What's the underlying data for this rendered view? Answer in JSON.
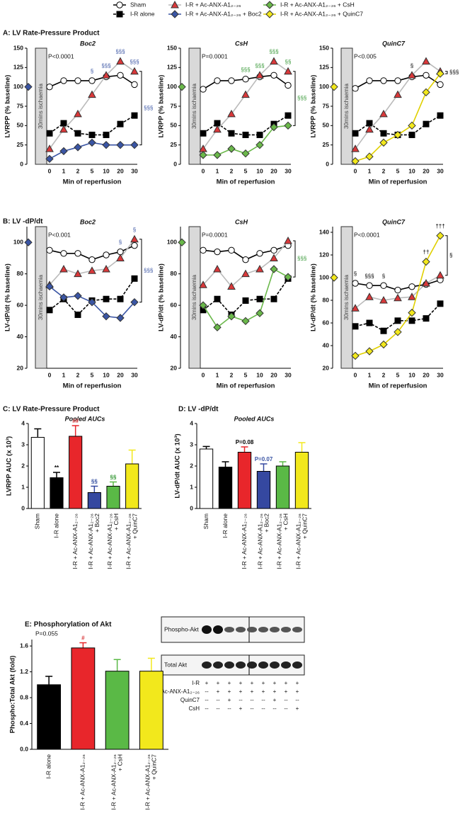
{
  "legend": [
    {
      "name": "Sham",
      "marker": "circle",
      "color": "#ffffff",
      "line": "#000000",
      "dash": false
    },
    {
      "name": "I-R alone",
      "marker": "square",
      "color": "#000000",
      "line": "#000000",
      "dash": true
    },
    {
      "name": "I-R + Ac-ANX-A1₂₋₂₆",
      "marker": "triangle",
      "color": "#d9383a",
      "line": "#bbbbbb",
      "dash": false
    },
    {
      "name": "I-R + Ac-ANX-A1₂₋₂₆ + Boc2",
      "marker": "diamond",
      "color": "#3a55a4",
      "line": "#3a55a4",
      "dash": false
    },
    {
      "name": "I-R + Ac-ANX-A1₂₋₂₆ + CsH",
      "marker": "diamond",
      "color": "#6ab84a",
      "line": "#6ab84a",
      "dash": false
    },
    {
      "name": "I-R + Ac-ANX-A1₂₋₂₆ + QuinC7",
      "marker": "diamond",
      "color": "#f2e81c",
      "line": "#e0d000",
      "dash": false
    }
  ],
  "chart_data": [
    {
      "type": "line",
      "panel_title": "A: LV Rate-Pressure Product",
      "subtitle": "Boc2",
      "y_label": "LVRPP (% baseline)",
      "x_label": "Min of reperfusion",
      "box_label": "30mins ischaemia",
      "stat_label": "P<0.0001",
      "baseline": 100,
      "categories": [
        "0",
        "1",
        "2",
        "5",
        "10",
        "20",
        "30"
      ],
      "ylim": [
        0,
        150
      ],
      "yticks": [
        0,
        25,
        50,
        75,
        100,
        125,
        150
      ],
      "series": [
        {
          "name": "Sham",
          "values": [
            100,
            108,
            108,
            108,
            113,
            115,
            103
          ]
        },
        {
          "name": "I-R alone",
          "values": [
            40,
            53,
            40,
            38,
            38,
            52,
            63
          ]
        },
        {
          "name": "I-R + Ac-ANX-A1₂₋₂₆",
          "values": [
            20,
            45,
            65,
            90,
            115,
            133,
            120
          ]
        },
        {
          "name": "I-R + Ac-ANX-A1₂₋₂₆ + Boc2",
          "values": [
            7,
            17,
            22,
            28,
            25,
            25,
            25
          ]
        }
      ],
      "top_labels": [
        null,
        null,
        null,
        "§",
        "§§§",
        "§§§",
        "§§§"
      ],
      "side_label": "§§§",
      "label_color": "#3a55a4"
    },
    {
      "type": "line",
      "subtitle": "CsH",
      "y_label": "LVRPP (% baseline)",
      "x_label": "Min of reperfusion",
      "box_label": "30mins ischaemia",
      "stat_label": "P=0.0001",
      "baseline": 100,
      "categories": [
        "0",
        "1",
        "2",
        "5",
        "10",
        "20",
        "30"
      ],
      "ylim": [
        0,
        150
      ],
      "yticks": [
        0,
        25,
        50,
        75,
        100,
        125,
        150
      ],
      "series": [
        {
          "name": "Sham",
          "values": [
            97,
            108,
            108,
            110,
            113,
            115,
            102
          ]
        },
        {
          "name": "I-R alone",
          "values": [
            40,
            53,
            40,
            38,
            38,
            52,
            63
          ]
        },
        {
          "name": "I-R + Ac-ANX-A1₂₋₂₆",
          "values": [
            20,
            45,
            65,
            90,
            115,
            133,
            120
          ]
        },
        {
          "name": "I-R + Ac-ANX-A1₂₋₂₆ + CsH",
          "values": [
            12,
            12,
            20,
            14,
            25,
            48,
            50
          ]
        }
      ],
      "top_labels": [
        null,
        null,
        null,
        "§§§",
        "§§§",
        "§§§",
        "§§"
      ],
      "side_label": "§§§",
      "label_color": "#3a9a3a"
    },
    {
      "type": "line",
      "subtitle": "QuinC7",
      "y_label": "LVRPP (% baseline)",
      "x_label": "Min of reperfusion",
      "box_label": "30mins ischaemia",
      "stat_label": "P<0.005",
      "baseline": 100,
      "categories": [
        "0",
        "1",
        "2",
        "5",
        "10",
        "20",
        "30"
      ],
      "ylim": [
        0,
        150
      ],
      "yticks": [
        0,
        25,
        50,
        75,
        100,
        125,
        150
      ],
      "series": [
        {
          "name": "Sham",
          "values": [
            98,
            108,
            108,
            108,
            113,
            115,
            103
          ]
        },
        {
          "name": "I-R alone",
          "values": [
            40,
            53,
            40,
            38,
            38,
            52,
            63
          ]
        },
        {
          "name": "I-R + Ac-ANX-A1₂₋₂₆",
          "values": [
            20,
            45,
            65,
            90,
            115,
            133,
            120
          ]
        },
        {
          "name": "I-R + Ac-ANX-A1₂₋₂₆ + QuinC7",
          "values": [
            4,
            10,
            28,
            38,
            50,
            93,
            117
          ]
        }
      ],
      "top_labels": [
        null,
        null,
        null,
        null,
        "§",
        null,
        null
      ],
      "side_label": "§§§",
      "label_color": "#000000"
    },
    {
      "type": "line",
      "panel_title": "B: LV -dP/dt",
      "subtitle": "Boc2",
      "y_label": "LV-dP/dt (% baseline)",
      "x_label": "Min of reperfusion",
      "box_label": "30mins ischaemia",
      "stat_label": "P<0.001",
      "baseline": 100,
      "categories": [
        "0",
        "1",
        "2",
        "5",
        "10",
        "20",
        "30"
      ],
      "ylim": [
        20,
        110
      ],
      "yticks": [
        20,
        40,
        60,
        80,
        100
      ],
      "series": [
        {
          "name": "Sham",
          "values": [
            95,
            93,
            93,
            89,
            92,
            94,
            98
          ]
        },
        {
          "name": "I-R alone",
          "values": [
            57,
            64,
            54,
            63,
            64,
            64,
            77
          ]
        },
        {
          "name": "I-R + Ac-ANX-A1₂₋₂₆",
          "values": [
            73,
            83,
            80,
            82,
            83,
            90,
            102
          ]
        },
        {
          "name": "I-R + Ac-ANX-A1₂₋₂₆ + Boc2",
          "values": [
            72,
            65,
            66,
            62,
            53,
            52,
            62
          ]
        }
      ],
      "top_labels": [
        null,
        null,
        null,
        null,
        null,
        "§",
        "§"
      ],
      "side_label": "§§§",
      "label_color": "#3a55a4"
    },
    {
      "type": "line",
      "subtitle": "CsH",
      "y_label": "LV-dP/dt (% baseline)",
      "x_label": "Min of reperfusion",
      "box_label": "30mins ischaemia",
      "stat_label": "P=0.0001",
      "baseline": 100,
      "categories": [
        "0",
        "1",
        "2",
        "5",
        "10",
        "20",
        "30"
      ],
      "ylim": [
        20,
        110
      ],
      "yticks": [
        20,
        40,
        60,
        80,
        100
      ],
      "series": [
        {
          "name": "Sham",
          "values": [
            95,
            94,
            95,
            89,
            93,
            95,
            98
          ]
        },
        {
          "name": "I-R alone",
          "values": [
            57,
            64,
            54,
            63,
            64,
            64,
            77
          ]
        },
        {
          "name": "I-R + Ac-ANX-A1₂₋₂₆",
          "values": [
            73,
            83,
            72,
            80,
            83,
            90,
            101
          ]
        },
        {
          "name": "I-R + Ac-ANX-A1₂₋₂₆ + CsH",
          "values": [
            60,
            46,
            53,
            50,
            55,
            83,
            78
          ]
        }
      ],
      "side_label": "§§§",
      "label_color": "#3a9a3a"
    },
    {
      "type": "line",
      "subtitle": "QuinC7",
      "y_label": "LV-dP/dt (% baseline)",
      "x_label": "Min of reperfusion",
      "box_label": "30mins ischaemia",
      "stat_label": "P<0.0001",
      "baseline": 100,
      "categories": [
        "0",
        "1",
        "2",
        "5",
        "10",
        "20",
        "30"
      ],
      "ylim": [
        20,
        145
      ],
      "yticks": [
        20,
        40,
        60,
        80,
        100,
        120,
        140
      ],
      "series": [
        {
          "name": "Sham",
          "values": [
            95,
            93,
            93,
            89,
            92,
            94,
            98
          ]
        },
        {
          "name": "I-R alone",
          "values": [
            57,
            60,
            53,
            62,
            62,
            64,
            77
          ]
        },
        {
          "name": "I-R + Ac-ANX-A1₂₋₂₆",
          "values": [
            73,
            83,
            80,
            82,
            83,
            95,
            102
          ]
        },
        {
          "name": "I-R + Ac-ANX-A1₂₋₂₆ + QuinC7",
          "values": [
            31,
            35,
            41,
            52,
            69,
            114,
            137
          ]
        }
      ],
      "top_labels": [
        "§",
        "§§§",
        "§",
        null,
        null,
        "††",
        "†††"
      ],
      "side_label": "§",
      "label_color": "#000000"
    },
    {
      "type": "bar",
      "panel_title": "C: LV Rate-Pressure Product",
      "subtitle": "Pooled AUCs",
      "y_label": "LVRPP AUC (x 10³)",
      "categories": [
        [
          "Sham"
        ],
        [
          "I-R alone"
        ],
        [
          "I-R + Ac-ANX-A1₂₋₂₆"
        ],
        [
          "I-R + Ac-ANX-A1₂₋₂₆",
          "+ Boc2"
        ],
        [
          "I-R + Ac-ANX-A1₂₋₂₆",
          "+ CsH"
        ],
        [
          "I-R + Ac-ANX-A1₂₋₂₆",
          "+ QuinC7"
        ]
      ],
      "values": [
        3.35,
        1.45,
        3.4,
        0.75,
        1.05,
        2.1
      ],
      "errors": [
        0.4,
        0.25,
        0.5,
        0.3,
        0.2,
        0.65
      ],
      "colors": [
        "#ffffff",
        "#000000",
        "#e8262b",
        "#3548a0",
        "#5ab946",
        "#f2e81c"
      ],
      "ylim": [
        0,
        4
      ],
      "yticks": [
        0,
        1,
        2,
        3,
        4
      ],
      "top_labels": [
        null,
        "**",
        "##",
        "§§",
        "§§",
        null
      ],
      "top_label_colors": [
        null,
        "#000000",
        "#d9383a",
        "#3a55a4",
        "#3a9a3a",
        null
      ]
    },
    {
      "type": "bar",
      "panel_title": "D: LV -dP/dt",
      "subtitle": "Pooled AUCs",
      "y_label": "LV-dP/dt AUC (x 10³)",
      "categories": [
        [
          "Sham"
        ],
        [
          "I-R alone"
        ],
        [
          "I-R + Ac-ANX-A1₂₋₂₆"
        ],
        [
          "I-R + Ac-ANX-A1₂₋₂₆",
          "+ Boc2"
        ],
        [
          "I-R + Ac-ANX-A1₂₋₂₆",
          "+ CsH"
        ],
        [
          "I-R + Ac-ANX-A1₂₋₂₆",
          "+ QuinC7"
        ]
      ],
      "values": [
        2.8,
        1.95,
        2.65,
        1.75,
        2.0,
        2.65
      ],
      "errors": [
        0.12,
        0.25,
        0.25,
        0.35,
        0.2,
        0.45
      ],
      "colors": [
        "#ffffff",
        "#000000",
        "#e8262b",
        "#3548a0",
        "#5ab946",
        "#f2e81c"
      ],
      "ylim": [
        0,
        4
      ],
      "yticks": [
        0,
        1,
        2,
        3,
        4
      ],
      "top_labels": [
        null,
        null,
        "P=0.08",
        "P=0.07",
        null,
        null
      ],
      "top_label_colors": [
        null,
        null,
        "#000000",
        "#3a55a4",
        null,
        null
      ]
    },
    {
      "type": "bar",
      "panel_title": "E:  Phosphorylation of Akt",
      "stat_label": "P=0.055",
      "y_label": "Phospho:Total Akt (fold)",
      "categories": [
        [
          "I-R alone"
        ],
        [
          "I-R + Ac-ANX-A1₂₋₂₆"
        ],
        [
          "I-R + Ac-ANX-A1₂₋₂₆",
          "+ CsH"
        ],
        [
          "I-R + Ac-ANX-A1₂₋₂₆",
          "+ QuinC7"
        ]
      ],
      "values": [
        1.0,
        1.57,
        1.21,
        1.21
      ],
      "errors": [
        0.13,
        0.08,
        0.18,
        0.2
      ],
      "colors": [
        "#000000",
        "#e8262b",
        "#5ab946",
        "#f2e81c"
      ],
      "ylim": [
        0,
        1.7
      ],
      "yticks": [
        {
          "value": 0,
          "label": "0.0"
        },
        0.4,
        0.8,
        1.2,
        1.6
      ],
      "top_labels": [
        null,
        "#",
        null,
        null
      ],
      "top_label_colors": [
        null,
        "#d9383a",
        null,
        null
      ]
    }
  ],
  "blot": {
    "bands": [
      "Phospho-Akt",
      "Total Akt"
    ],
    "rows": [
      {
        "label": "I-R",
        "marks": [
          "+",
          "+",
          "+",
          "+",
          "+",
          "+",
          "+",
          "+",
          "+"
        ]
      },
      {
        "label": "Ac-ANX-A1₂₋₂₆",
        "marks": [
          "--",
          "+",
          "+",
          "+",
          "+",
          "+",
          "+",
          "+",
          "+"
        ]
      },
      {
        "label": "QuinC7",
        "marks": [
          "--",
          "--",
          "+",
          "--",
          "--",
          "--",
          "+",
          "--",
          "--"
        ]
      },
      {
        "label": "CsH",
        "marks": [
          "--",
          "--",
          "--",
          "+",
          "--",
          "--",
          "--",
          "--",
          "+"
        ]
      }
    ]
  }
}
